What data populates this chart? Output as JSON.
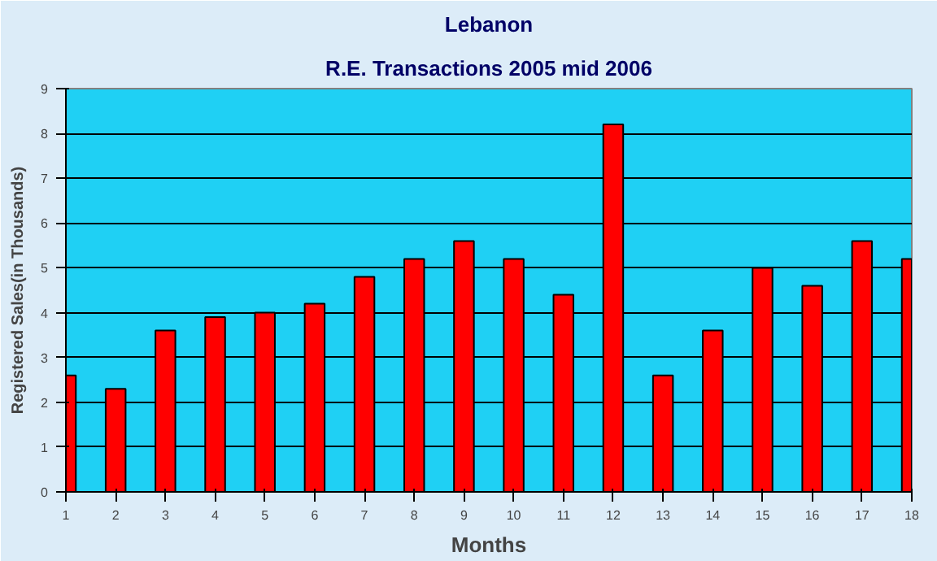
{
  "chart_data": {
    "type": "bar",
    "title": "Lebanon",
    "subtitle": "R.E. Transactions 2005 mid 2006",
    "xlabel": "Months",
    "ylabel": "Registered Sales(in Thousands)",
    "x": [
      1,
      2,
      3,
      4,
      5,
      6,
      7,
      8,
      9,
      10,
      11,
      12,
      13,
      14,
      15,
      16,
      17,
      18
    ],
    "values": [
      2.6,
      2.3,
      3.6,
      3.9,
      4.0,
      4.2,
      4.8,
      5.2,
      5.6,
      5.2,
      4.4,
      8.2,
      2.6,
      3.6,
      5.0,
      4.6,
      5.6,
      5.2
    ],
    "color": "#ff0000",
    "xlim": [
      1,
      18
    ],
    "xticks": [
      1,
      2,
      3,
      4,
      5,
      6,
      7,
      8,
      9,
      10,
      11,
      12,
      13,
      14,
      15,
      16,
      17,
      18
    ],
    "ylim": [
      0,
      9
    ],
    "yticks": [
      0,
      1,
      2,
      3,
      4,
      5,
      6,
      7,
      8,
      9
    ],
    "grid": "y"
  }
}
